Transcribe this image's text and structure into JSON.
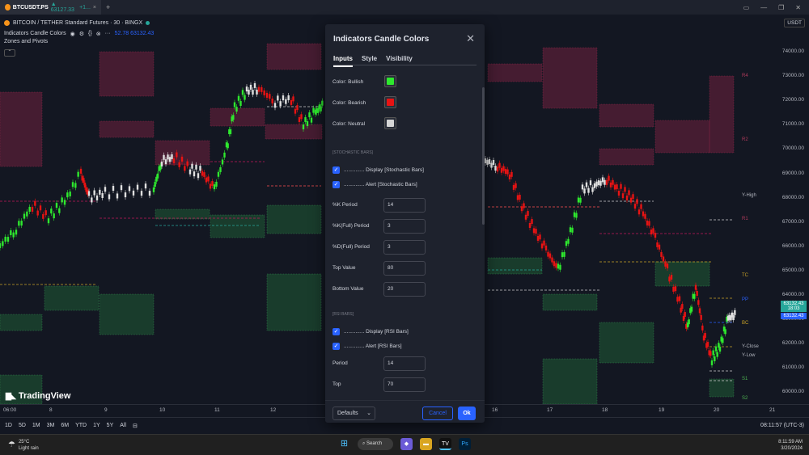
{
  "browser": {
    "tab_symbol": "BTCUSDT.PS",
    "tab_price": "▲ 63127.33",
    "tab_change": "+1..."
  },
  "chart_header": {
    "title": "BITCOIN / TETHER Standard Futures · 30 · BINGX",
    "indicator_name": "Indicators Candle Colors",
    "indicator_values": "52.78 63132.43",
    "zones_label": "Zones and Pivots",
    "currency": "USDT"
  },
  "y_axis": [
    "74000.00",
    "73000.00",
    "72000.00",
    "71000.00",
    "70000.00",
    "69000.00",
    "68000.00",
    "67000.00",
    "66000.00",
    "65000.00",
    "64000.00",
    "63000.00",
    "62000.00",
    "61000.00",
    "60000.00"
  ],
  "price_tags": {
    "current": "63132.43",
    "current2": "63132.43",
    "countdown": "18:03"
  },
  "x_axis": [
    "06:00",
    "8",
    "9",
    "10",
    "11",
    "12",
    "13",
    "14",
    "15",
    "16",
    "17",
    "18",
    "19",
    "20",
    "21"
  ],
  "zone_labels": [
    "R4",
    "R2",
    "Y-High",
    "R1",
    "TC",
    "PP",
    "BC",
    "Y-Close",
    "Y-Low",
    "S1",
    "S2"
  ],
  "timeframes": [
    "1D",
    "5D",
    "1M",
    "3M",
    "6M",
    "YTD",
    "1Y",
    "5Y",
    "All"
  ],
  "clock": "08:11:57 (UTC-3)",
  "brand": "TradingView",
  "modal": {
    "title": "Indicators Candle Colors",
    "tabs": [
      "Inputs",
      "Style",
      "Visibility"
    ],
    "colors": [
      {
        "label": "Color: Bullish",
        "color": "#2ee82e"
      },
      {
        "label": "Color: Bearish",
        "color": "#e81313"
      },
      {
        "label": "Color: Neutral",
        "color": "#d6d6d6"
      }
    ],
    "stoch_section": "[STOCHASTIC BARS]",
    "stoch_checks": [
      ".............. Display [Stochastic Bars]",
      ".............. Alert [Stochastic Bars]"
    ],
    "stoch_fields": [
      {
        "label": "%K Period",
        "value": "14"
      },
      {
        "label": "%K(Full) Period",
        "value": "3"
      },
      {
        "label": "%D(Full) Period",
        "value": "3"
      },
      {
        "label": "Top Value",
        "value": "80"
      },
      {
        "label": "Bottom Value",
        "value": "20"
      }
    ],
    "rsi_section": "[RSI BARS]",
    "rsi_checks": [
      ".............. Display [RSI Bars]",
      ".............. Alert [RSI Bars]"
    ],
    "rsi_fields": [
      {
        "label": "Period",
        "value": "14"
      },
      {
        "label": "Top",
        "value": "70"
      }
    ],
    "defaults_label": "Defaults",
    "cancel_label": "Cancel",
    "ok_label": "Ok"
  },
  "taskbar": {
    "temp": "25°C",
    "weather": "Light rain",
    "search": "Search",
    "time": "8:11:59 AM",
    "date": "3/20/2024"
  }
}
